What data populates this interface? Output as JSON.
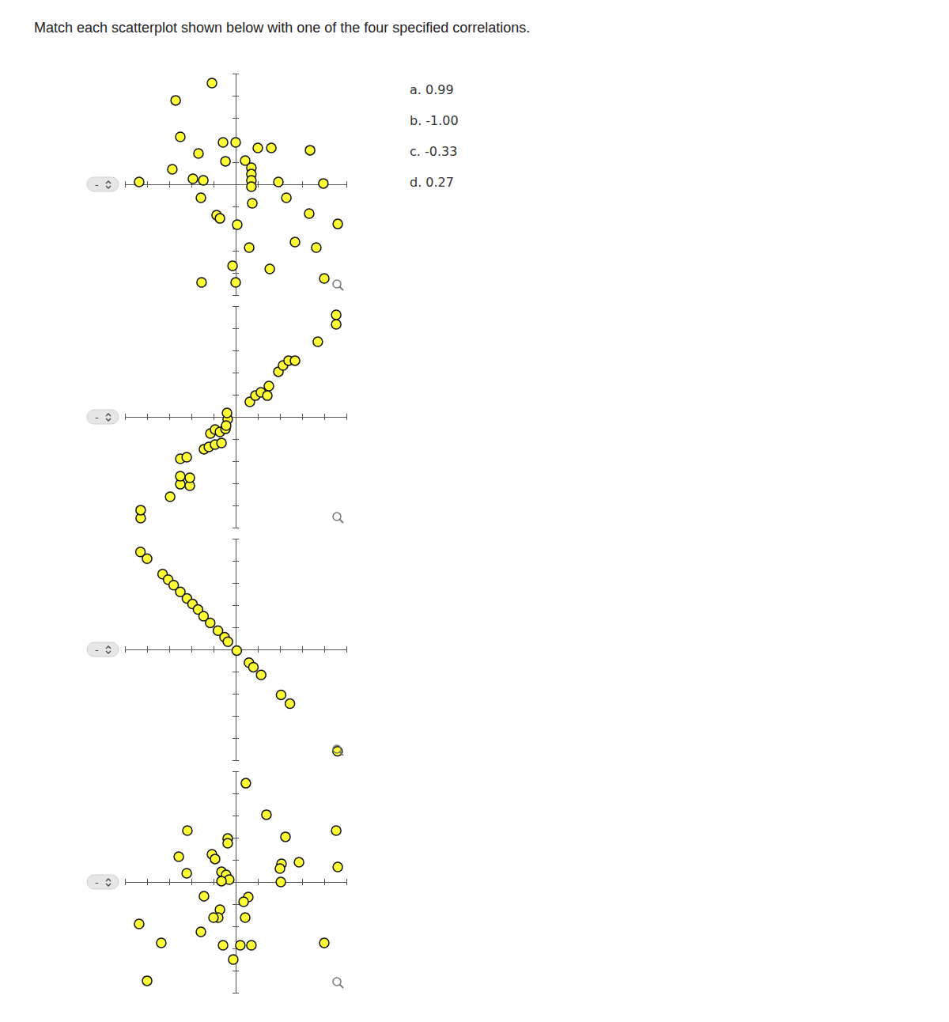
{
  "question": "Match each scatterplot shown below with one of the four specified correlations.",
  "options": [
    "a. 0.99",
    "b. -1.00",
    "c. -0.33",
    "d. 0.27"
  ],
  "dropdown_placeholder": "-",
  "chart_data": [
    {
      "type": "scatter",
      "marker": "circle",
      "color": "#ffff33",
      "tick_labels": false,
      "xlim": [
        -5,
        5
      ],
      "ylim": [
        -5,
        5
      ],
      "xticks": [
        -5,
        -4,
        -3,
        -2,
        -1,
        0,
        1,
        2,
        3,
        4,
        5
      ],
      "yticks": [
        -5,
        -4,
        -3,
        -2,
        -1,
        0,
        1,
        2,
        3,
        4,
        5
      ],
      "x": [
        -1.07,
        -2.71,
        -2.5,
        -1.68,
        -0.57,
        0,
        1,
        1.61,
        3.36,
        -0.46,
        0.43,
        -2.86,
        -4.36,
        -1.93,
        -1.46,
        0.71,
        0.71,
        0.71,
        0.71,
        1.93,
        3.96,
        -1.57,
        0.75,
        2.29,
        -0.86,
        -0.71,
        0.07,
        3.32,
        4.61,
        0.61,
        2.68,
        3.64,
        -0.14,
        1.54,
        -1.54,
        0,
        4
      ],
      "values": [
        4.57,
        3.79,
        2.14,
        1.39,
        1.89,
        1.89,
        1.64,
        1.64,
        1.54,
        1.04,
        1.07,
        0.68,
        0.11,
        0.25,
        0.18,
        0.75,
        0.46,
        0.18,
        -0.11,
        0.11,
        0.04,
        -0.61,
        -0.86,
        -0.61,
        -1.39,
        -1.54,
        -1.82,
        -1.32,
        -1.79,
        -2.86,
        -2.61,
        -2.86,
        -3.68,
        -3.82,
        -4.43,
        -4.43,
        -4.25
      ]
    },
    {
      "type": "scatter",
      "marker": "circle",
      "color": "#ffff33",
      "tick_labels": false,
      "xlim": [
        -5,
        5
      ],
      "ylim": [
        -5,
        5
      ],
      "xticks": [
        -5,
        -4,
        -3,
        -2,
        -1,
        0,
        1,
        2,
        3,
        4,
        5
      ],
      "yticks": [
        -5,
        -4,
        -3,
        -2,
        -1,
        0,
        1,
        2,
        3,
        4,
        5
      ],
      "x": [
        -4.29,
        -4.29,
        -2.96,
        -2.5,
        -2.07,
        -2.5,
        -2.07,
        -2.5,
        -2.21,
        -1.43,
        -1.21,
        -0.93,
        -0.64,
        -1.14,
        -0.93,
        -0.71,
        -0.46,
        -0.36,
        -0.39,
        -0.43,
        0.64,
        0.89,
        1.14,
        1.43,
        1.5,
        1.93,
        2.14,
        2.39,
        2.68,
        3.71,
        4.54,
        4.54
      ],
      "values": [
        -4.57,
        -4.21,
        -3.61,
        -3.04,
        -3.11,
        -2.68,
        -2.75,
        -1.89,
        -1.82,
        -1.46,
        -1.36,
        -1.25,
        -1.18,
        -0.75,
        -0.57,
        -0.68,
        -0.54,
        -0.11,
        0.18,
        -0.39,
        0.68,
        0.96,
        1.11,
        0.96,
        1.39,
        2.04,
        2.32,
        2.54,
        2.54,
        3.39,
        4.18,
        4.61
      ]
    },
    {
      "type": "scatter",
      "marker": "circle",
      "color": "#ffff33",
      "tick_labels": false,
      "xlim": [
        -5,
        5
      ],
      "ylim": [
        -5,
        5
      ],
      "xticks": [
        -5,
        -4,
        -3,
        -2,
        -1,
        0,
        1,
        2,
        3,
        4,
        5
      ],
      "yticks": [
        -5,
        -4,
        -3,
        -2,
        -1,
        0,
        1,
        2,
        3,
        4,
        5
      ],
      "x": [
        -4.3,
        -4.0,
        -3.3,
        -3.05,
        -2.8,
        -2.5,
        -2.2,
        -1.95,
        -1.7,
        -1.45,
        -1.15,
        -0.8,
        -0.5,
        -0.35,
        0.05,
        0.6,
        0.8,
        1.15,
        2.05,
        2.45,
        4.6
      ],
      "values": [
        4.4,
        4.1,
        3.4,
        3.15,
        2.9,
        2.6,
        2.3,
        2.05,
        1.8,
        1.5,
        1.2,
        0.85,
        0.55,
        0.35,
        -0.05,
        -0.6,
        -0.8,
        -1.15,
        -2.05,
        -2.45,
        -4.6
      ]
    },
    {
      "type": "scatter",
      "marker": "circle",
      "color": "#ffff33",
      "tick_labels": false,
      "xlim": [
        -5,
        5
      ],
      "ylim": [
        -5,
        5
      ],
      "xticks": [
        -5,
        -4,
        -3,
        -2,
        -1,
        0,
        1,
        2,
        3,
        4,
        5
      ],
      "yticks": [
        -5,
        -4,
        -3,
        -2,
        -1,
        0,
        1,
        2,
        3,
        4,
        5
      ],
      "x": [
        0.46,
        1.39,
        -2.18,
        2.25,
        -0.36,
        -0.36,
        4.54,
        -2.57,
        -1.07,
        -0.93,
        2.07,
        2.0,
        2.86,
        4.61,
        -2.21,
        -0.64,
        -0.43,
        -0.29,
        -0.64,
        2.04,
        -1.43,
        0.57,
        0.36,
        -0.71,
        -0.79,
        -1.0,
        0.43,
        -4.36,
        -1.57,
        -3.36,
        -0.57,
        0.21,
        0.71,
        4,
        -0.11,
        -4
      ],
      "values": [
        4.46,
        3.04,
        2.32,
        2.04,
        1.96,
        1.75,
        2.32,
        1.14,
        1.25,
        1.04,
        0.82,
        0.61,
        0.89,
        0.68,
        0.39,
        0.46,
        0.32,
        0.11,
        0.04,
        0,
        -0.64,
        -0.68,
        -0.89,
        -1.25,
        -1.61,
        -1.61,
        -1.61,
        -1.89,
        -2.25,
        -2.75,
        -2.86,
        -2.86,
        -2.86,
        -2.75,
        -3.5,
        -4.46
      ]
    }
  ]
}
